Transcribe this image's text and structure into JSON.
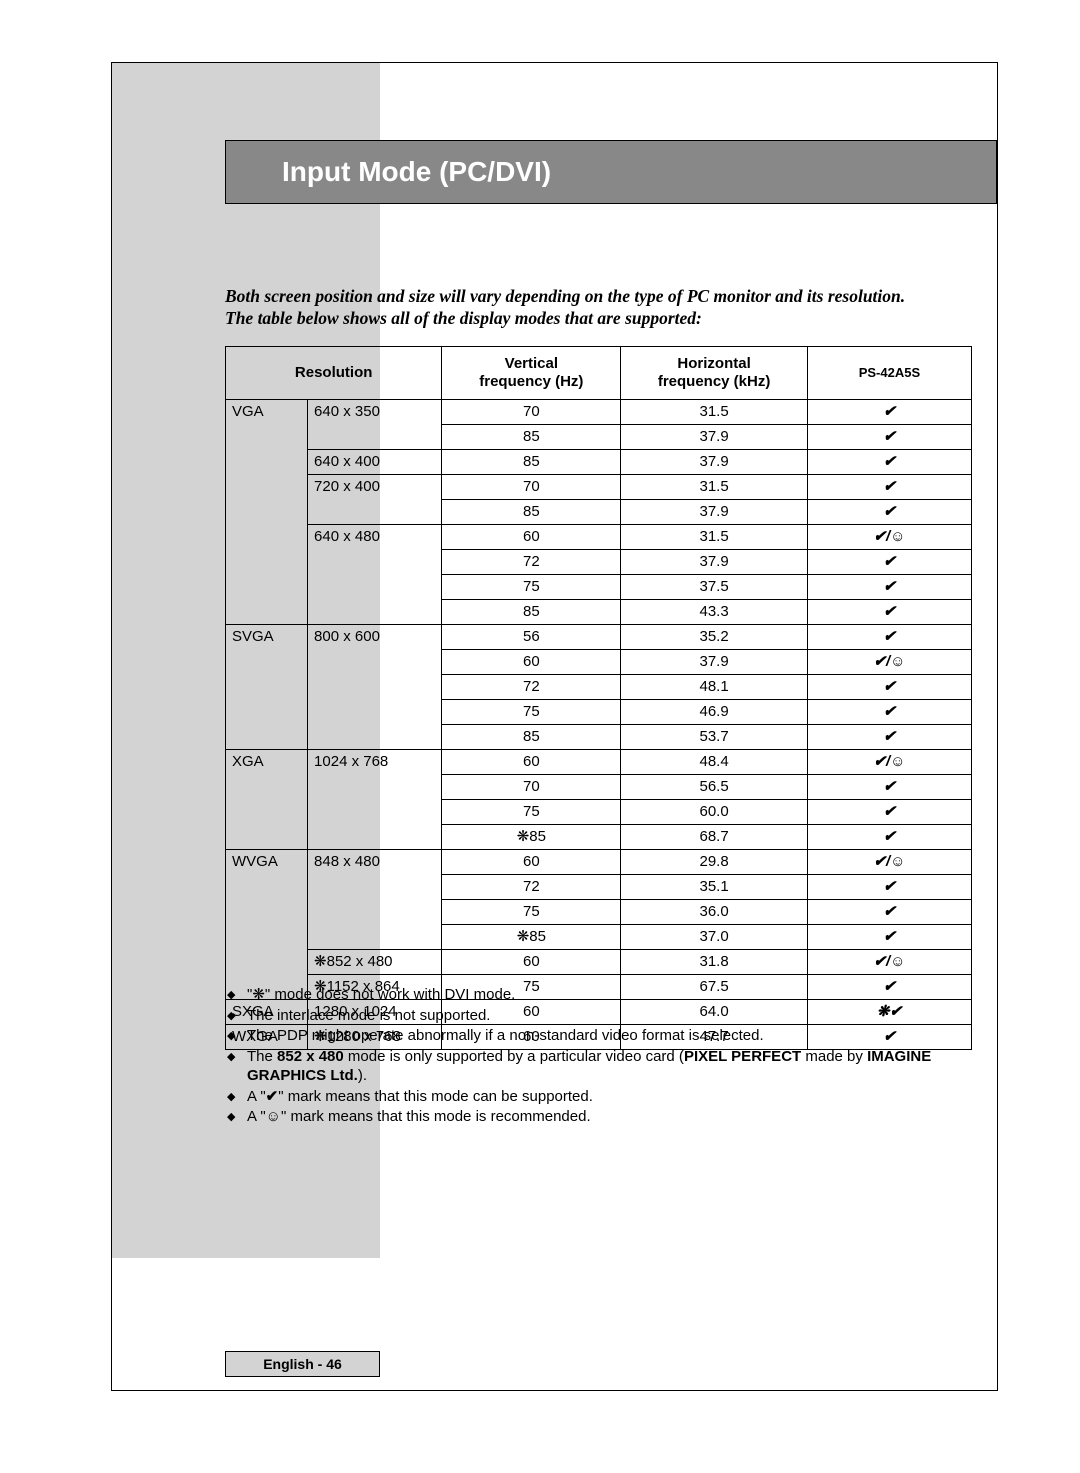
{
  "section_title": "Input Mode (PC/DVI)",
  "intro_line1": "Both screen position and size will vary depending on the type of PC monitor and its resolution.",
  "intro_line2": "The table below shows all of the display modes that are supported:",
  "headers": {
    "resolution": "Resolution",
    "vertical_l1": "Vertical",
    "vertical_l2": "frequency (Hz)",
    "horizontal_l1": "Horizontal",
    "horizontal_l2": "frequency (kHz)",
    "ps": "PS-42A5S"
  },
  "colors": {
    "sidebar_bg": "#d3d3d3",
    "title_bg": "#888888",
    "title_fg": "#ffffff",
    "border": "#000000",
    "text": "#000000"
  },
  "glyphs": {
    "check": "✔",
    "check_smile": "✔/☺",
    "star": "❋",
    "star_check": "❋✔"
  },
  "table": {
    "groups": [
      {
        "category": "VGA",
        "resolutions": [
          {
            "res": "640 x 350",
            "rows": [
              {
                "v": "70",
                "h": "31.5",
                "s": "check"
              },
              {
                "v": "85",
                "h": "37.9",
                "s": "check"
              }
            ]
          },
          {
            "res": "640 x 400",
            "rows": [
              {
                "v": "85",
                "h": "37.9",
                "s": "check"
              }
            ]
          },
          {
            "res": "720 x 400",
            "rows": [
              {
                "v": "70",
                "h": "31.5",
                "s": "check"
              },
              {
                "v": "85",
                "h": "37.9",
                "s": "check"
              }
            ]
          },
          {
            "res": "640 x 480",
            "rows": [
              {
                "v": "60",
                "h": "31.5",
                "s": "check_smile"
              },
              {
                "v": "72",
                "h": "37.9",
                "s": "check"
              },
              {
                "v": "75",
                "h": "37.5",
                "s": "check"
              },
              {
                "v": "85",
                "h": "43.3",
                "s": "check"
              }
            ]
          }
        ]
      },
      {
        "category": "SVGA",
        "resolutions": [
          {
            "res": "800 x 600",
            "rows": [
              {
                "v": "56",
                "h": "35.2",
                "s": "check"
              },
              {
                "v": "60",
                "h": "37.9",
                "s": "check_smile"
              },
              {
                "v": "72",
                "h": "48.1",
                "s": "check"
              },
              {
                "v": "75",
                "h": "46.9",
                "s": "check"
              },
              {
                "v": "85",
                "h": "53.7",
                "s": "check"
              }
            ]
          }
        ]
      },
      {
        "category": "XGA",
        "resolutions": [
          {
            "res": "1024 x 768",
            "rows": [
              {
                "v": "60",
                "h": "48.4",
                "s": "check_smile"
              },
              {
                "v": "70",
                "h": "56.5",
                "s": "check"
              },
              {
                "v": "75",
                "h": "60.0",
                "s": "check"
              },
              {
                "v": "❋85",
                "h": "68.7",
                "s": "check"
              }
            ]
          }
        ]
      },
      {
        "category": "WVGA",
        "resolutions": [
          {
            "res": "848 x 480",
            "rows": [
              {
                "v": "60",
                "h": "29.8",
                "s": "check_smile"
              },
              {
                "v": "72",
                "h": "35.1",
                "s": "check"
              },
              {
                "v": "75",
                "h": "36.0",
                "s": "check"
              },
              {
                "v": "❋85",
                "h": "37.0",
                "s": "check"
              }
            ]
          },
          {
            "res": "❋852 x 480",
            "rows": [
              {
                "v": "60",
                "h": "31.8",
                "s": "check_smile"
              }
            ]
          },
          {
            "res": "❋1152 x 864",
            "rows": [
              {
                "v": "75",
                "h": "67.5",
                "s": "check"
              }
            ]
          }
        ]
      },
      {
        "category": "SXGA",
        "resolutions": [
          {
            "res": "1280 x 1024",
            "rows": [
              {
                "v": "60",
                "h": "64.0",
                "s": "star_check"
              }
            ]
          }
        ]
      },
      {
        "category": "WXGA",
        "resolutions": [
          {
            "res": "❋1280 x 768",
            "rows": [
              {
                "v": "60",
                "h": "47.7",
                "s": "check"
              }
            ]
          }
        ]
      }
    ],
    "col_widths_pct": [
      11,
      18,
      24,
      25,
      22
    ]
  },
  "notes": [
    {
      "pre": "\"❋\" mode does not work with DVI mode."
    },
    {
      "pre": "The interlace mode is not supported."
    },
    {
      "pre": "The PDP might operate abnormally if a non-standard video format is selected."
    },
    {
      "pre": "The ",
      "b1": "852 x 480",
      "mid": " mode is only supported by a particular video card (",
      "b2": "PIXEL PERFECT",
      "mid2": " made by ",
      "b3": "IMAGINE GRAPHICS Ltd.",
      "post": ")."
    },
    {
      "pre": "A \"",
      "sym": "✔",
      "post": "\" mark means that this mode can be supported."
    },
    {
      "pre": "A \"",
      "sym": "☺",
      "post": "\" mark means that this mode is recommended."
    }
  ],
  "footer": "English - 46"
}
